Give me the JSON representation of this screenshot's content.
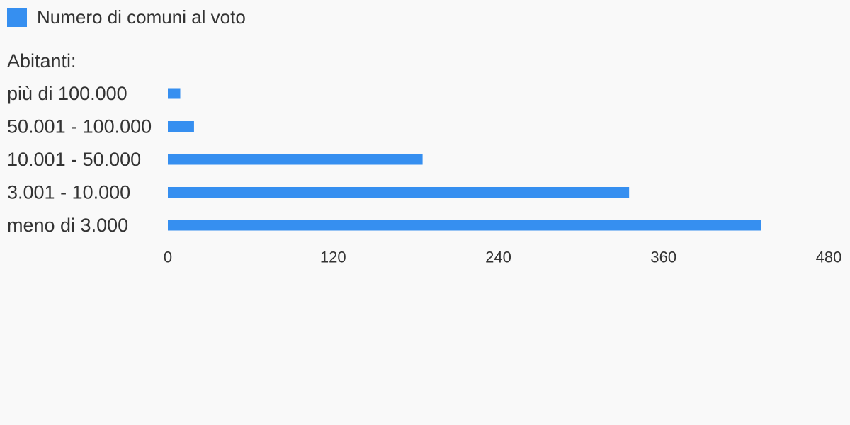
{
  "legend": {
    "label": "Numero di comuni al voto",
    "color": "#368ff0"
  },
  "chart_data": {
    "type": "bar",
    "orientation": "horizontal",
    "category_axis_title": "Abitanti:",
    "categories": [
      "più di 100.000",
      "50.001 - 100.000",
      "10.001 - 50.000",
      "3.001 - 10.000",
      "meno di 3.000"
    ],
    "series": [
      {
        "name": "Numero di comuni al voto",
        "values": [
          9,
          19,
          185,
          335,
          431
        ]
      }
    ],
    "xlim": [
      0,
      480
    ],
    "xticks": [
      0,
      120,
      240,
      360,
      480
    ],
    "tick_labels": [
      "0",
      "120",
      "240",
      "360",
      "480"
    ],
    "grid": false,
    "legend_position": "top-left"
  }
}
